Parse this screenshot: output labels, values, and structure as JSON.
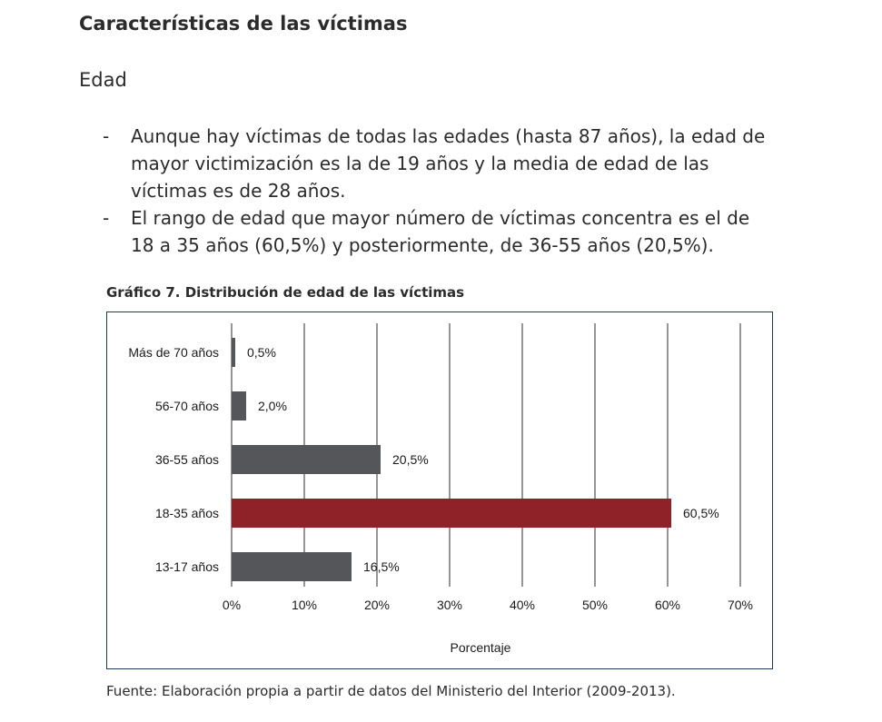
{
  "section_title": "Características de las víctimas",
  "subsection_title": "Edad",
  "bullets": [
    "Aunque hay víctimas de todas las edades (hasta 87 años), la edad de mayor victimización es la de 19 años y la media de edad de las víctimas es de 28 años.",
    "El rango de edad que mayor número de víctimas concentra es el de 18 a 35 años (60,5%) y posteriormente, de 36-55 años (20,5%)."
  ],
  "bullet_marker": "-",
  "chart_title": "Gráfico 7. Distribución de edad de las víctimas",
  "source": "Fuente: Elaboración propia a partir de datos del Ministerio del Interior (2009-2013).",
  "colors": {
    "bar_default": "#55565a",
    "bar_highlight": "#8f2228",
    "grid": "#2e2e2e",
    "frame": "#1f3a5f"
  },
  "chart_data": {
    "type": "bar",
    "orientation": "horizontal",
    "categories": [
      "Más de 70 años",
      "56-70 años",
      "36-55 años",
      "18-35 años",
      "13-17 años"
    ],
    "values": [
      0.5,
      2.0,
      20.5,
      60.5,
      16.5
    ],
    "value_labels": [
      "0,5%",
      "2,0%",
      "20,5%",
      "60,5%",
      "16,5%"
    ],
    "highlight_index": 3,
    "xlabel": "Porcentaje",
    "ylabel": "",
    "xlim": [
      0,
      70
    ],
    "xticks": [
      0,
      10,
      20,
      30,
      40,
      50,
      60,
      70
    ],
    "xtick_labels": [
      "0%",
      "10%",
      "20%",
      "30%",
      "40%",
      "50%",
      "60%",
      "70%"
    ],
    "grid": true
  }
}
